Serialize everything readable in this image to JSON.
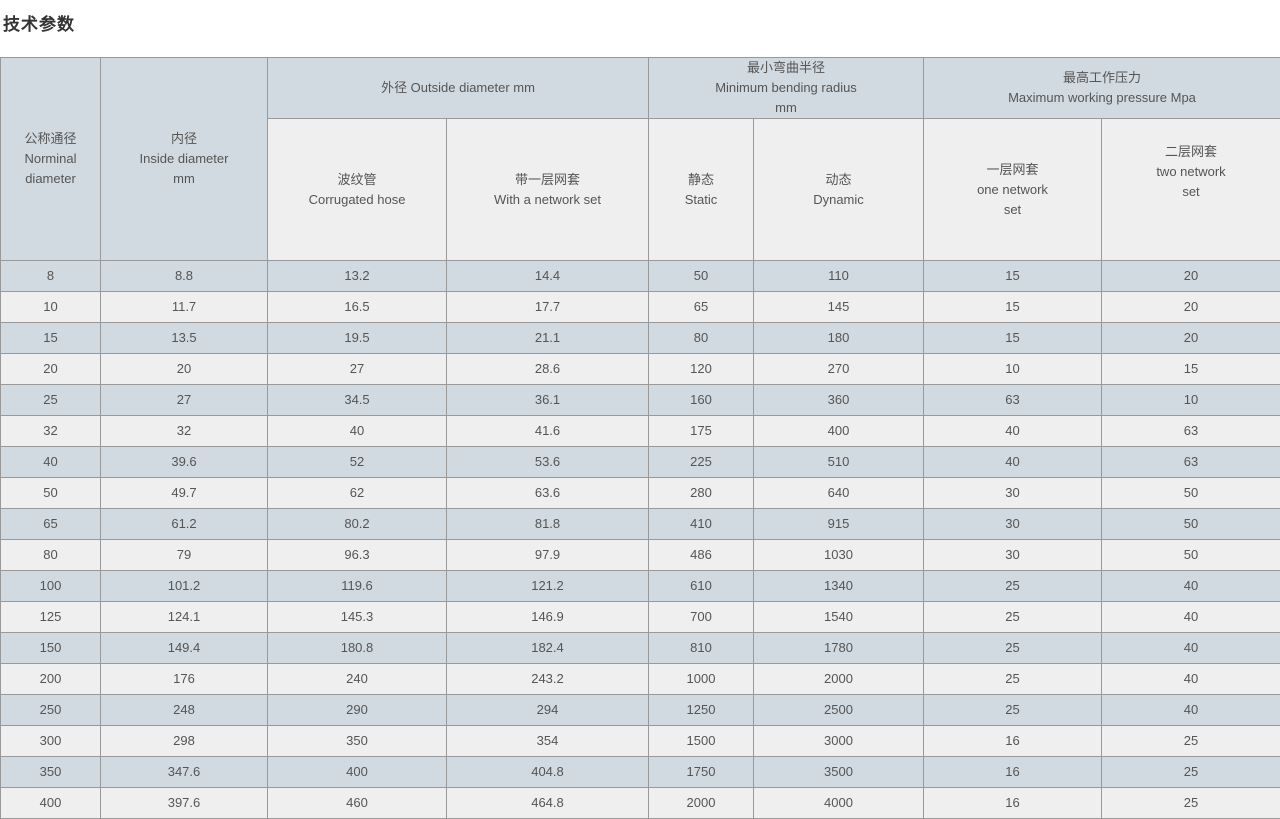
{
  "page_title": "技术参数",
  "colors": {
    "row_blue": "#d2dae1",
    "row_light": "#efefef",
    "border_color": "#999999",
    "text_color": "#555555",
    "title_color": "#333333"
  },
  "table": {
    "header": {
      "nominal": {
        "lines": [
          "公称通径",
          "Norminal",
          "diameter"
        ]
      },
      "inside": {
        "lines": [
          "内径",
          "Inside diameter",
          "mm"
        ]
      },
      "outside": {
        "lines": [
          "外径 Outside diameter mm"
        ]
      },
      "bending": {
        "lines": [
          "最小弯曲半径",
          "Minimum bending radius",
          "mm"
        ]
      },
      "pressure": {
        "lines": [
          "最高工作压力",
          "Maximum working pressure Mpa"
        ]
      },
      "corrugated": {
        "lines": [
          "波纹管",
          "Corrugated hose"
        ]
      },
      "network_set": {
        "lines": [
          "带一层网套",
          "With a network set"
        ]
      },
      "static": {
        "lines": [
          "静态",
          "Static"
        ]
      },
      "dynamic": {
        "lines": [
          "动态",
          "Dynamic"
        ]
      },
      "one_network": {
        "lines": [
          "一层网套",
          "one network",
          "set"
        ]
      },
      "two_network": {
        "lines": [
          "二层网套",
          "two network",
          "set"
        ]
      }
    },
    "rows": [
      [
        "8",
        "8.8",
        "13.2",
        "14.4",
        "50",
        "110",
        "15",
        "20"
      ],
      [
        "10",
        "11.7",
        "16.5",
        "17.7",
        "65",
        "145",
        "15",
        "20"
      ],
      [
        "15",
        "13.5",
        "19.5",
        "21.1",
        "80",
        "180",
        "15",
        "20"
      ],
      [
        "20",
        "20",
        "27",
        "28.6",
        "120",
        "270",
        "10",
        "15"
      ],
      [
        "25",
        "27",
        "34.5",
        "36.1",
        "160",
        "360",
        "63",
        "10"
      ],
      [
        "32",
        "32",
        "40",
        "41.6",
        "175",
        "400",
        "40",
        "63"
      ],
      [
        "40",
        "39.6",
        "52",
        "53.6",
        "225",
        "510",
        "40",
        "63"
      ],
      [
        "50",
        "49.7",
        "62",
        "63.6",
        "280",
        "640",
        "30",
        "50"
      ],
      [
        "65",
        "61.2",
        "80.2",
        "81.8",
        "410",
        "915",
        "30",
        "50"
      ],
      [
        "80",
        "79",
        "96.3",
        "97.9",
        "486",
        "1030",
        "30",
        "50"
      ],
      [
        "100",
        "101.2",
        "119.6",
        "121.2",
        "610",
        "1340",
        "25",
        "40"
      ],
      [
        "125",
        "124.1",
        "145.3",
        "146.9",
        "700",
        "1540",
        "25",
        "40"
      ],
      [
        "150",
        "149.4",
        "180.8",
        "182.4",
        "810",
        "1780",
        "25",
        "40"
      ],
      [
        "200",
        "176",
        "240",
        "243.2",
        "1000",
        "2000",
        "25",
        "40"
      ],
      [
        "250",
        "248",
        "290",
        "294",
        "1250",
        "2500",
        "25",
        "40"
      ],
      [
        "300",
        "298",
        "350",
        "354",
        "1500",
        "3000",
        "16",
        "25"
      ],
      [
        "350",
        "347.6",
        "400",
        "404.8",
        "1750",
        "3500",
        "16",
        "25"
      ],
      [
        "400",
        "397.6",
        "460",
        "464.8",
        "2000",
        "4000",
        "16",
        "25"
      ]
    ]
  }
}
